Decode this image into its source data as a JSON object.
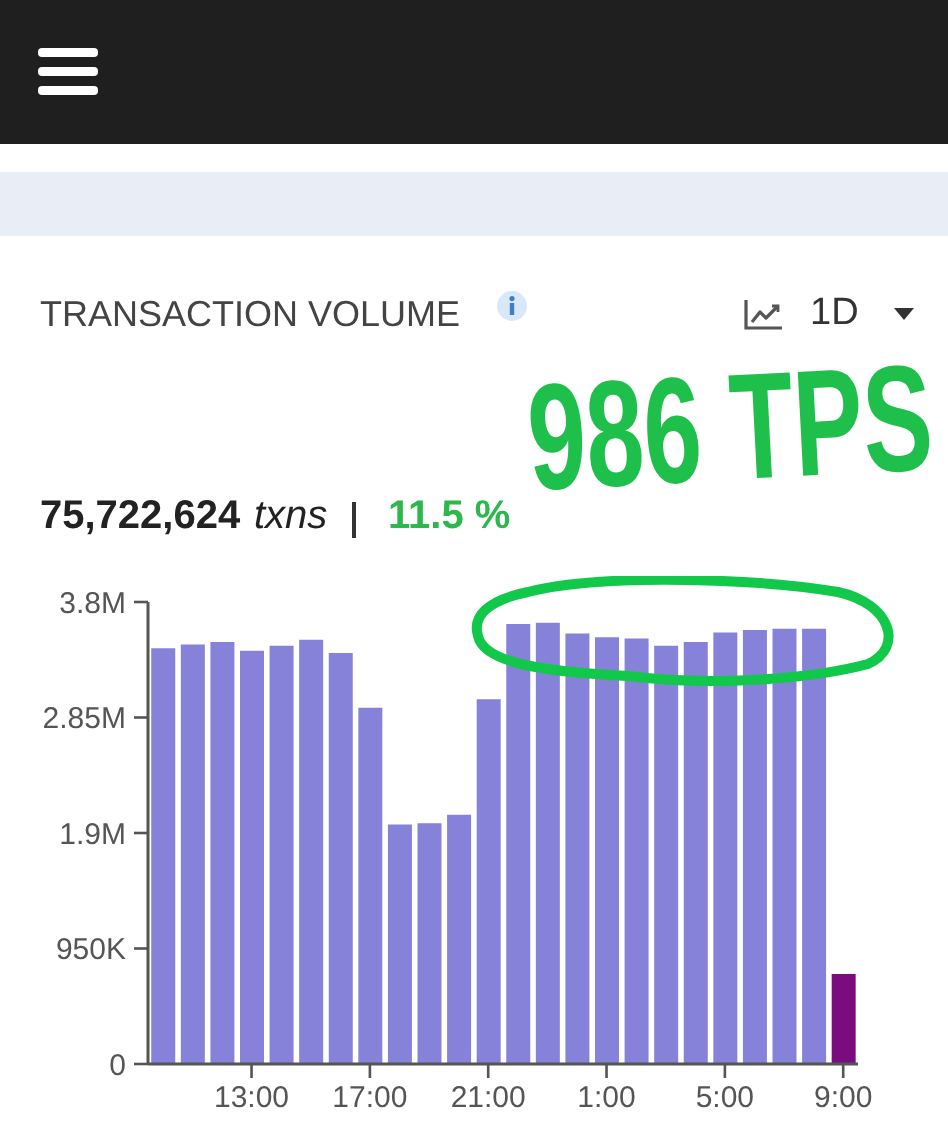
{
  "chart_data": {
    "type": "bar",
    "title": "TRANSACTION VOLUME",
    "annotations": [
      "75,722,624",
      "txns",
      "11.5 %",
      "1D",
      "986 TPS"
    ],
    "categories": [
      null,
      null,
      null,
      "13:00",
      null,
      null,
      null,
      "17:00",
      null,
      null,
      null,
      "21:00",
      null,
      null,
      null,
      "1:00",
      null,
      null,
      null,
      "5:00",
      null,
      null,
      null,
      "9:00"
    ],
    "values": [
      3420000,
      3450000,
      3470000,
      3400000,
      3440000,
      3490000,
      3380000,
      2930000,
      1970000,
      1980000,
      2050000,
      3000000,
      3620000,
      3630000,
      3540000,
      3510000,
      3500000,
      3440000,
      3470000,
      3550000,
      3570000,
      3580000,
      3580000,
      740000
    ],
    "colors": [
      "#8782d9",
      "#8782d9",
      "#8782d9",
      "#8782d9",
      "#8782d9",
      "#8782d9",
      "#8782d9",
      "#8782d9",
      "#8782d9",
      "#8782d9",
      "#8782d9",
      "#8782d9",
      "#8782d9",
      "#8782d9",
      "#8782d9",
      "#8782d9",
      "#8782d9",
      "#8782d9",
      "#8782d9",
      "#8782d9",
      "#8782d9",
      "#8782d9",
      "#8782d9",
      "#7b0c80"
    ],
    "ylim": [
      0,
      3800000
    ],
    "yticks": [
      0,
      {
        "value": 950000,
        "label": "950K"
      },
      {
        "value": 1900000,
        "label": "1.9M"
      },
      {
        "value": 2850000,
        "label": "2.85M"
      },
      {
        "value": 3800000,
        "label": "3.8M"
      }
    ]
  }
}
